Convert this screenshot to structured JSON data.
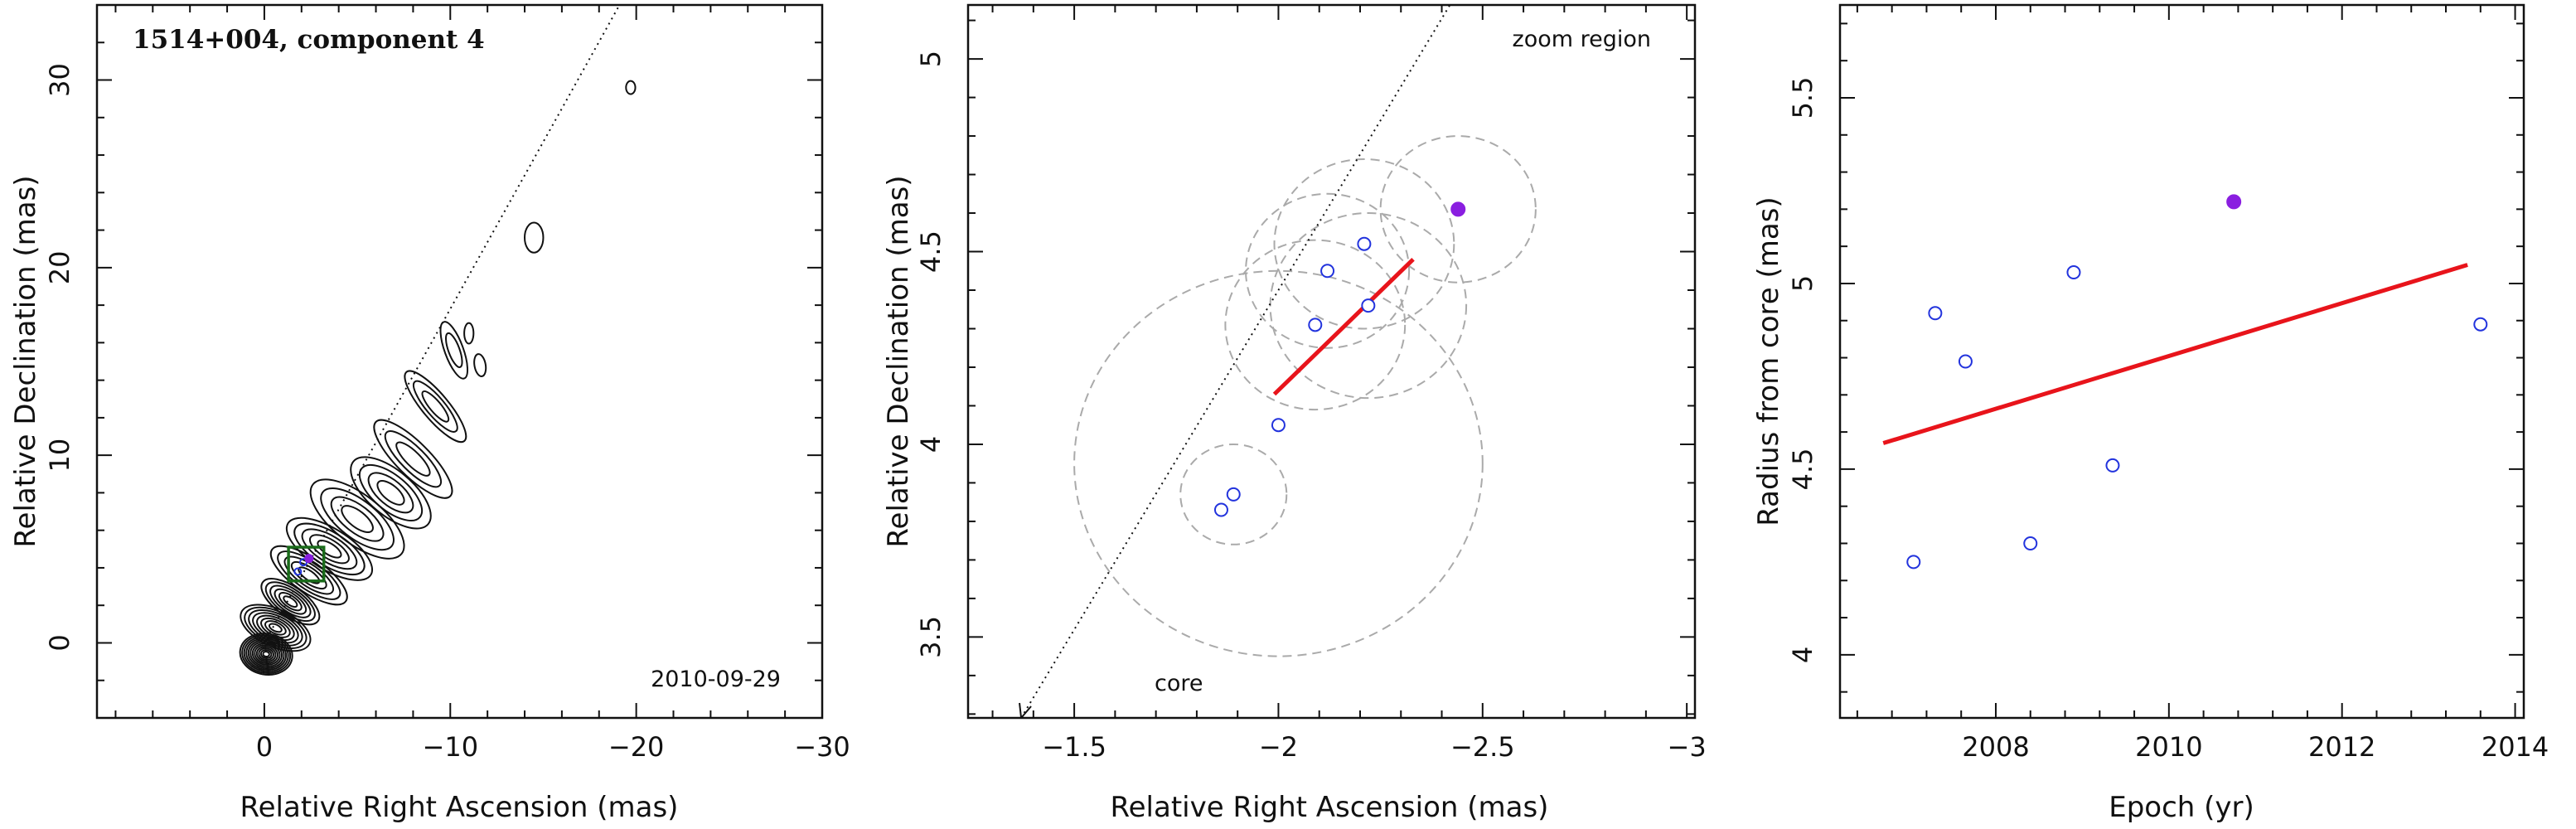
{
  "chart_data": [
    {
      "type": "scatter",
      "panel": "contour-map",
      "title": "1514+004, component 4",
      "epoch_label": "2010-09-29",
      "xlabel": "Relative Right Ascension (mas)",
      "ylabel": "Relative Declination (mas)",
      "xlim": [
        9,
        -30
      ],
      "ylim": [
        -4,
        34
      ],
      "xticks": [
        0,
        -10,
        -20,
        -30
      ],
      "yticks": [
        0,
        10,
        20,
        30
      ],
      "jet_direction_line": {
        "x": [
          0,
          -19.1
        ],
        "y": [
          0,
          34
        ]
      },
      "zoom_box": {
        "x": [
          -1.3,
          -3.2
        ],
        "y": [
          3.3,
          5.1
        ]
      },
      "marker_point": {
        "x": -2.4,
        "y": 4.5
      },
      "contour_points": {
        "x": [
          -1.8,
          -2.1
        ],
        "y": [
          3.8,
          4.3
        ]
      }
    },
    {
      "type": "scatter",
      "panel": "zoom-region",
      "region_label": "zoom region",
      "core_label": "core",
      "xlabel": "Relative Right Ascension (mas)",
      "ylabel": "Relative Declination (mas)",
      "xlim": [
        -1.24,
        -3.02
      ],
      "ylim": [
        3.29,
        5.14
      ],
      "xticks": [
        -1.5,
        -2,
        -2.5,
        -3
      ],
      "yticks": [
        3.5,
        4,
        4.5,
        5
      ],
      "open_points": {
        "x": [
          -1.86,
          -1.89,
          -2.0,
          -2.09,
          -2.12,
          -2.21,
          -2.22
        ],
        "y": [
          3.83,
          3.87,
          4.05,
          4.31,
          4.45,
          4.52,
          4.36
        ]
      },
      "filled_point": {
        "x": -2.44,
        "y": 4.61
      },
      "error_circles": [
        {
          "x": -1.89,
          "y": 3.87,
          "r": 0.13
        },
        {
          "x": -2.0,
          "y": 3.95,
          "r": 0.5
        },
        {
          "x": -2.09,
          "y": 4.31,
          "r": 0.22
        },
        {
          "x": -2.12,
          "y": 4.45,
          "r": 0.2
        },
        {
          "x": -2.21,
          "y": 4.52,
          "r": 0.22
        },
        {
          "x": -2.22,
          "y": 4.36,
          "r": 0.24
        },
        {
          "x": -2.44,
          "y": 4.61,
          "r": 0.19
        }
      ],
      "fit_line": {
        "x": [
          -1.99,
          -2.33
        ],
        "y": [
          4.13,
          4.48
        ]
      },
      "jet_direction_line": {
        "x": [
          -1.37,
          -2.42
        ],
        "y": [
          3.29,
          5.14
        ]
      }
    },
    {
      "type": "scatter",
      "panel": "radius-vs-epoch",
      "xlabel": "Epoch (yr)",
      "ylabel": "Radius from core (mas)",
      "xlim": [
        2006.2,
        2014.1
      ],
      "ylim": [
        3.83,
        5.75
      ],
      "xticks": [
        2008,
        2010,
        2012,
        2014
      ],
      "yticks": [
        4,
        4.5,
        5,
        5.5
      ],
      "open_points": {
        "x": [
          2007.05,
          2007.3,
          2007.65,
          2008.4,
          2008.9,
          2009.35,
          2013.6
        ],
        "y": [
          4.25,
          4.92,
          4.79,
          4.3,
          5.03,
          4.51,
          4.89
        ]
      },
      "filled_point": {
        "x": 2010.75,
        "y": 5.22
      },
      "fit_line": {
        "x": [
          2006.7,
          2013.45
        ],
        "y": [
          4.57,
          5.05
        ]
      }
    }
  ]
}
